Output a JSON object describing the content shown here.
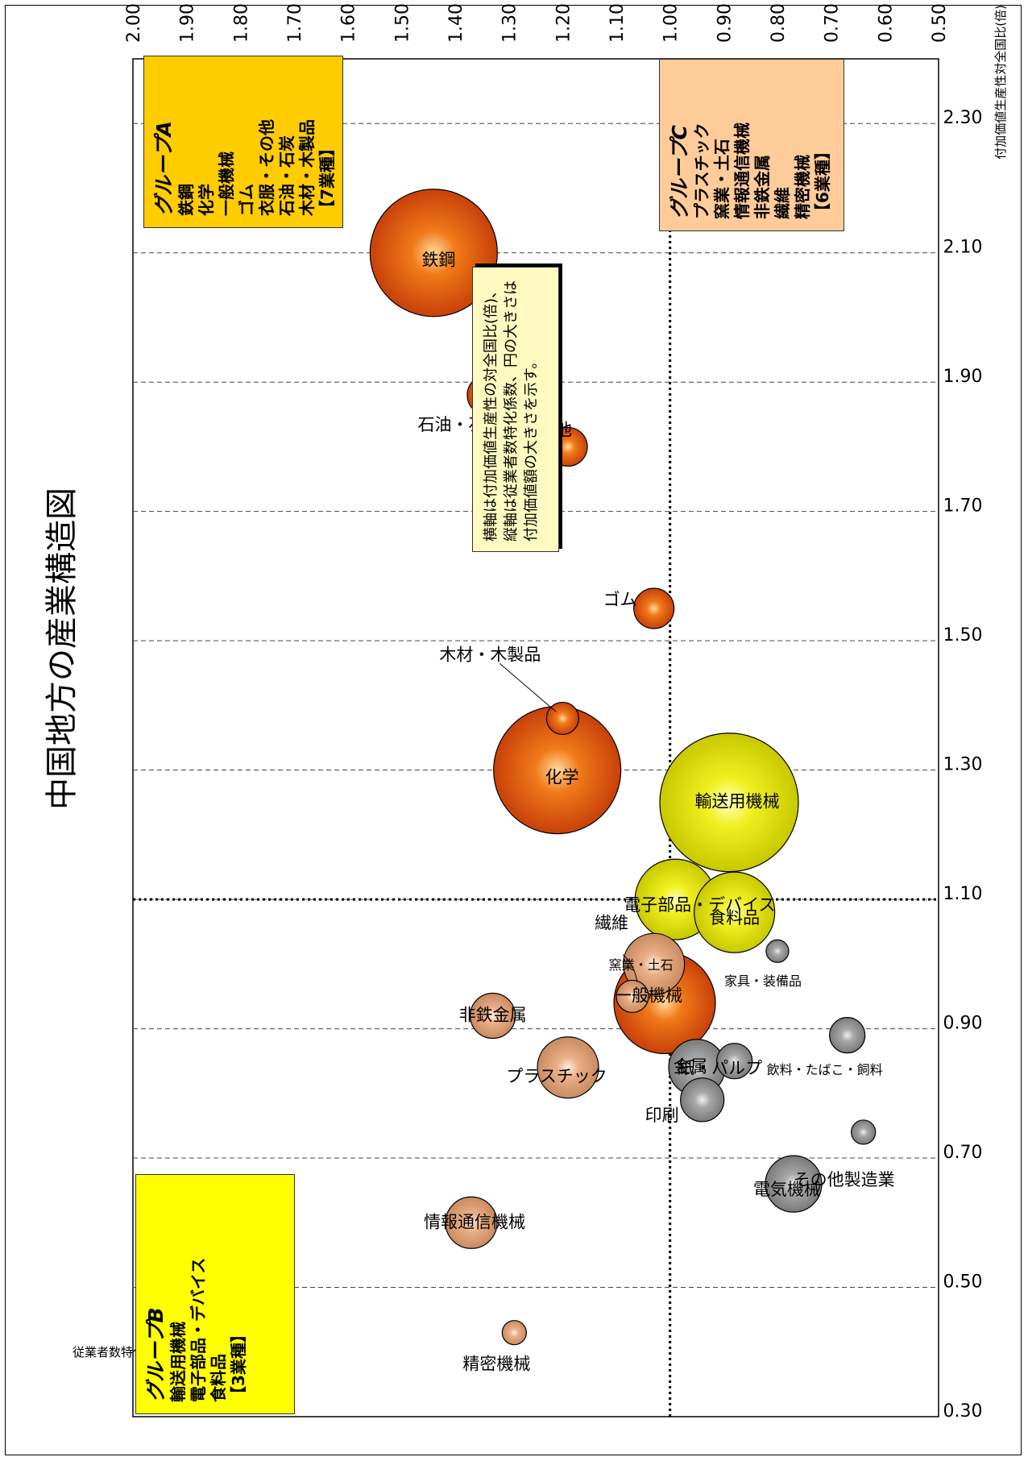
{
  "chart_data": {
    "type": "bubble",
    "title": "中国地方の産業構造図",
    "xlabel": "付加価値生産性対全国比(倍)",
    "ylabel": "従業者数特化係数",
    "xlim": [
      0.5,
      2.0
    ],
    "ylim": [
      0.3,
      2.4
    ],
    "xticks": [
      "0.50",
      "0.60",
      "0.70",
      "0.80",
      "0.90",
      "1.00",
      "1.10",
      "1.20",
      "1.30",
      "1.40",
      "1.50",
      "1.60",
      "1.70",
      "1.80",
      "1.90",
      "2.00"
    ],
    "yticks": [
      "0.30",
      "0.50",
      "0.70",
      "0.90",
      "1.10",
      "1.30",
      "1.50",
      "1.70",
      "1.90",
      "2.10",
      "2.30"
    ],
    "reference_lines": {
      "x": 1.0,
      "y": 1.1
    },
    "grid": "horizontal dashed",
    "colors": {
      "A": "#d24a08",
      "B": "#d8d800",
      "C": "#e09868",
      "other": "#8a8a8a"
    },
    "points": [
      {
        "name": "鉄鋼",
        "x": 1.44,
        "y": 2.1,
        "r": 79,
        "group": "A"
      },
      {
        "name": "化学",
        "x": 1.21,
        "y": 1.3,
        "r": 79,
        "group": "A"
      },
      {
        "name": "石油・石炭",
        "x": 1.34,
        "y": 1.88,
        "r": 25,
        "group": "A"
      },
      {
        "name": "木材・木製品",
        "x": 1.2,
        "y": 1.38,
        "r": 20,
        "group": "A"
      },
      {
        "name": "衣服・その他",
        "x": 1.19,
        "y": 1.8,
        "r": 24,
        "group": "A"
      },
      {
        "name": "ゴム",
        "x": 1.03,
        "y": 1.55,
        "r": 25,
        "group": "A"
      },
      {
        "name": "一般機械",
        "x": 1.01,
        "y": 0.94,
        "r": 63,
        "group": "A"
      },
      {
        "name": "窯業・土石",
        "x": 1.03,
        "y": 1.0,
        "r": 38,
        "group": "C"
      },
      {
        "name": "繊維",
        "x": 1.07,
        "y": 0.95,
        "r": 20,
        "group": "C"
      },
      {
        "name": "プラスチック",
        "x": 1.19,
        "y": 0.84,
        "r": 38,
        "group": "C"
      },
      {
        "name": "非鉄金属",
        "x": 1.33,
        "y": 0.92,
        "r": 28,
        "group": "C"
      },
      {
        "name": "情報通信機械",
        "x": 1.37,
        "y": 0.6,
        "r": 32,
        "group": "C"
      },
      {
        "name": "精密機械",
        "x": 1.29,
        "y": 0.43,
        "r": 15,
        "group": "C"
      },
      {
        "name": "電子部品・デバイス",
        "x": 0.99,
        "y": 1.1,
        "r": 50,
        "group": "B"
      },
      {
        "name": "輸送用機械",
        "x": 0.89,
        "y": 1.25,
        "r": 86,
        "group": "B"
      },
      {
        "name": "食料品",
        "x": 0.88,
        "y": 1.08,
        "r": 50,
        "group": "B"
      },
      {
        "name": "金属",
        "x": 0.95,
        "y": 0.84,
        "r": 35,
        "group": "other"
      },
      {
        "name": "印刷",
        "x": 0.94,
        "y": 0.79,
        "r": 27,
        "group": "other"
      },
      {
        "name": "紙・パルプ",
        "x": 0.88,
        "y": 0.85,
        "r": 22,
        "group": "other"
      },
      {
        "name": "家具・装備品",
        "x": 0.8,
        "y": 1.02,
        "r": 14,
        "group": "other"
      },
      {
        "name": "電気機械",
        "x": 0.77,
        "y": 0.66,
        "r": 35,
        "group": "other"
      },
      {
        "name": "飲料・たばこ・飼料",
        "x": 0.67,
        "y": 0.89,
        "r": 22,
        "group": "other"
      },
      {
        "name": "その他製造業",
        "x": 0.64,
        "y": 0.74,
        "r": 15,
        "group": "other"
      }
    ]
  },
  "groups": {
    "A": {
      "title": "グループA",
      "items": [
        "鉄鋼",
        "化学",
        "一般機械",
        "ゴム",
        "衣服・その他",
        "石油・石炭",
        "木材・木製品",
        "【7業種】"
      ],
      "color": "#ffcc00"
    },
    "B": {
      "title": "グループB",
      "items": [
        "輸送用機械",
        "電子部品・デバイス",
        "食料品",
        "【3業種】"
      ],
      "color": "#ffff00"
    },
    "C": {
      "title": "グループC",
      "items": [
        "プラスチック",
        "窯業・土石",
        "情報通信機械",
        "非鉄金属",
        "繊維",
        "精密機械",
        "【6業種】"
      ],
      "color": "#ffcc99"
    }
  },
  "note": [
    "横軸は付加価値生産性の対全国比(倍)、",
    "縦軸は従業者数特化係数、円の大きさは",
    "付加価値額の大きさを示す。"
  ]
}
